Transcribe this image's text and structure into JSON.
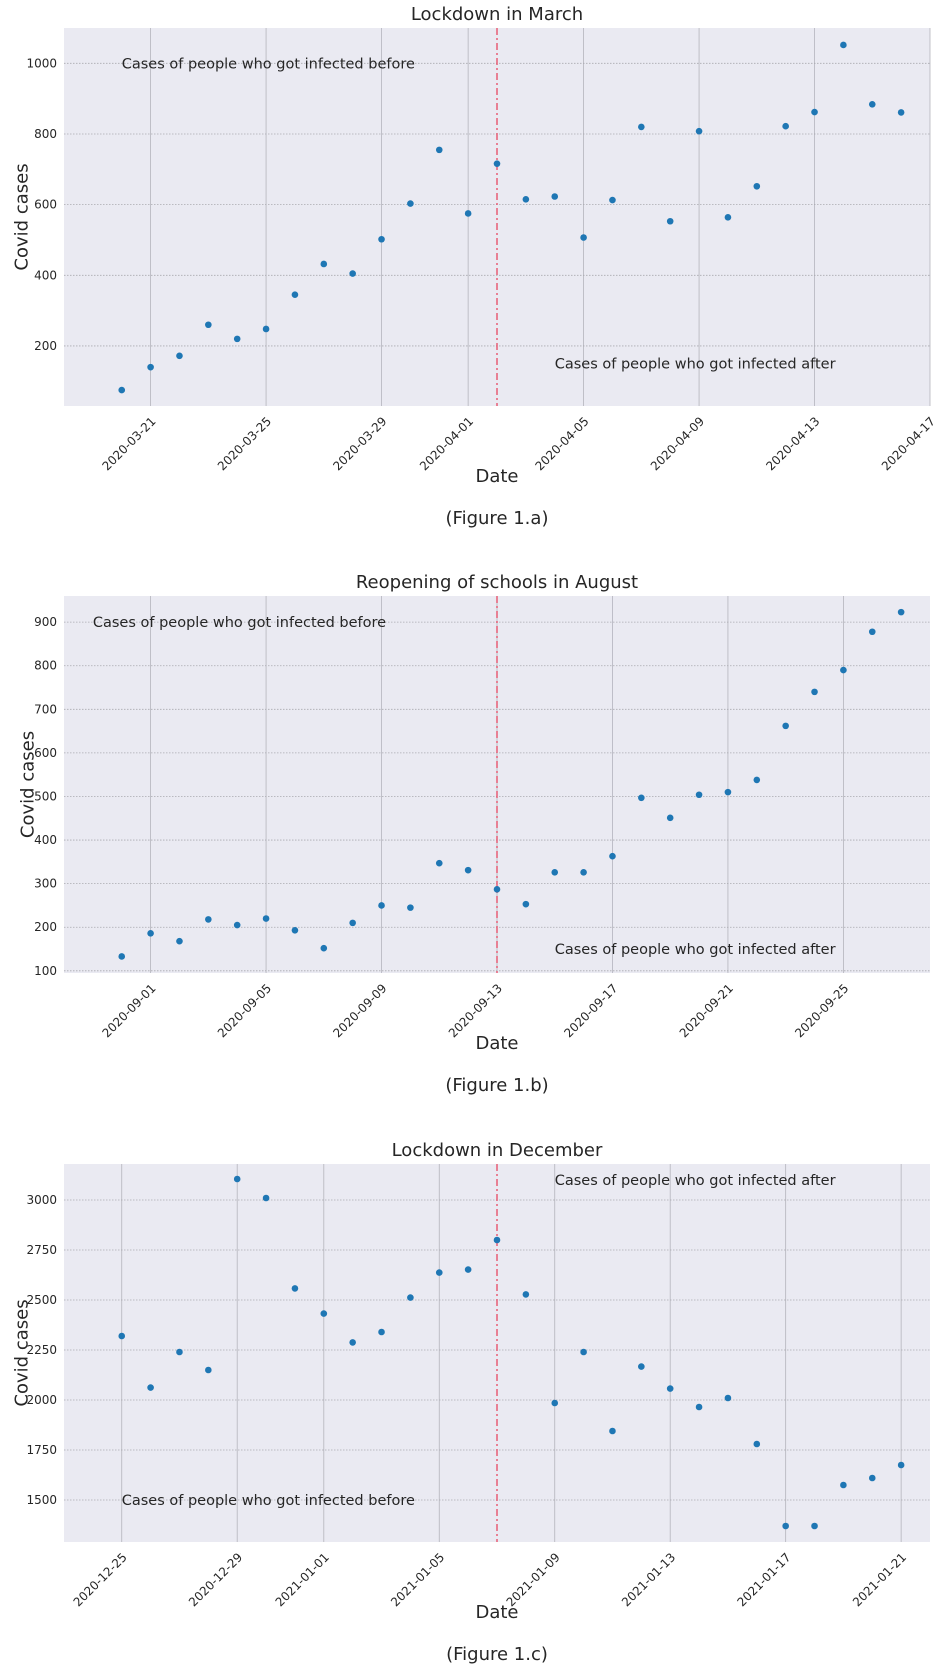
{
  "chart_data": [
    {
      "type": "scatter",
      "title": "Lockdown in March",
      "caption": "(Figure 1.a)",
      "xlabel": "Date",
      "ylabel": "Covid cases",
      "x_axis": "date",
      "xlim": [
        "2020-03-18",
        "2020-04-17"
      ],
      "ylim": [
        30,
        1100
      ],
      "x_ticks": [
        "2020-03-21",
        "2020-03-25",
        "2020-03-29",
        "2020-04-01",
        "2020-04-05",
        "2020-04-09",
        "2020-04-13",
        "2020-04-17"
      ],
      "y_ticks": [
        200,
        400,
        600,
        800,
        1000
      ],
      "grid": true,
      "marker_color": "#1f77b4",
      "event_line": {
        "x": "2020-04-02",
        "color": "#e8546c",
        "style": "dash-dot"
      },
      "annotations": [
        {
          "text": "Cases of people who got infected before",
          "x": "2020-03-20",
          "y": 1000
        },
        {
          "text": "Cases of people who got infected after",
          "x": "2020-04-04",
          "y": 150
        }
      ],
      "points": [
        {
          "x": "2020-03-20",
          "y": 75
        },
        {
          "x": "2020-03-21",
          "y": 140
        },
        {
          "x": "2020-03-22",
          "y": 172
        },
        {
          "x": "2020-03-23",
          "y": 260
        },
        {
          "x": "2020-03-24",
          "y": 220
        },
        {
          "x": "2020-03-25",
          "y": 248
        },
        {
          "x": "2020-03-26",
          "y": 345
        },
        {
          "x": "2020-03-27",
          "y": 432
        },
        {
          "x": "2020-03-28",
          "y": 405
        },
        {
          "x": "2020-03-29",
          "y": 502
        },
        {
          "x": "2020-03-30",
          "y": 603
        },
        {
          "x": "2020-03-31",
          "y": 755
        },
        {
          "x": "2020-04-01",
          "y": 575
        },
        {
          "x": "2020-04-02",
          "y": 716
        },
        {
          "x": "2020-04-03",
          "y": 615
        },
        {
          "x": "2020-04-04",
          "y": 623
        },
        {
          "x": "2020-04-05",
          "y": 507
        },
        {
          "x": "2020-04-06",
          "y": 613
        },
        {
          "x": "2020-04-07",
          "y": 820
        },
        {
          "x": "2020-04-08",
          "y": 553
        },
        {
          "x": "2020-04-09",
          "y": 808
        },
        {
          "x": "2020-04-10",
          "y": 564
        },
        {
          "x": "2020-04-11",
          "y": 652
        },
        {
          "x": "2020-04-12",
          "y": 822
        },
        {
          "x": "2020-04-13",
          "y": 862
        },
        {
          "x": "2020-04-14",
          "y": 1052
        },
        {
          "x": "2020-04-15",
          "y": 884
        },
        {
          "x": "2020-04-16",
          "y": 861
        }
      ]
    },
    {
      "type": "scatter",
      "title": "Reopening of schools in August",
      "caption": "(Figure 1.b)",
      "xlabel": "Date",
      "ylabel": "Covid cases",
      "x_axis": "date",
      "xlim": [
        "2020-08-29",
        "2020-09-28"
      ],
      "ylim": [
        95,
        960
      ],
      "x_ticks": [
        "2020-09-01",
        "2020-09-05",
        "2020-09-09",
        "2020-09-13",
        "2020-09-17",
        "2020-09-21",
        "2020-09-25"
      ],
      "y_ticks": [
        100,
        200,
        300,
        400,
        500,
        600,
        700,
        800,
        900
      ],
      "grid": true,
      "marker_color": "#1f77b4",
      "event_line": {
        "x": "2020-09-13",
        "color": "#e8546c",
        "style": "dash-dot"
      },
      "annotations": [
        {
          "text": "Cases of people who got infected before",
          "x": "2020-08-30",
          "y": 900
        },
        {
          "text": "Cases of people who got infected after",
          "x": "2020-09-15",
          "y": 150
        }
      ],
      "points": [
        {
          "x": "2020-08-31",
          "y": 133
        },
        {
          "x": "2020-09-01",
          "y": 186
        },
        {
          "x": "2020-09-02",
          "y": 168
        },
        {
          "x": "2020-09-03",
          "y": 218
        },
        {
          "x": "2020-09-04",
          "y": 205
        },
        {
          "x": "2020-09-05",
          "y": 220
        },
        {
          "x": "2020-09-06",
          "y": 193
        },
        {
          "x": "2020-09-07",
          "y": 152
        },
        {
          "x": "2020-09-08",
          "y": 210
        },
        {
          "x": "2020-09-09",
          "y": 250
        },
        {
          "x": "2020-09-10",
          "y": 245
        },
        {
          "x": "2020-09-11",
          "y": 347
        },
        {
          "x": "2020-09-12",
          "y": 331
        },
        {
          "x": "2020-09-13",
          "y": 287
        },
        {
          "x": "2020-09-14",
          "y": 253
        },
        {
          "x": "2020-09-15",
          "y": 326
        },
        {
          "x": "2020-09-16",
          "y": 326
        },
        {
          "x": "2020-09-17",
          "y": 363
        },
        {
          "x": "2020-09-18",
          "y": 497
        },
        {
          "x": "2020-09-19",
          "y": 451
        },
        {
          "x": "2020-09-20",
          "y": 504
        },
        {
          "x": "2020-09-21",
          "y": 510
        },
        {
          "x": "2020-09-22",
          "y": 538
        },
        {
          "x": "2020-09-23",
          "y": 662
        },
        {
          "x": "2020-09-24",
          "y": 740
        },
        {
          "x": "2020-09-25",
          "y": 790
        },
        {
          "x": "2020-09-26",
          "y": 878
        },
        {
          "x": "2020-09-27",
          "y": 923
        }
      ]
    },
    {
      "type": "scatter",
      "title": "Lockdown in December",
      "caption": "(Figure 1.c)",
      "xlabel": "Date",
      "ylabel": "Covid cases",
      "x_axis": "date",
      "xlim": [
        "2020-12-23",
        "2021-01-22"
      ],
      "ylim": [
        1290,
        3180
      ],
      "x_ticks": [
        "2020-12-25",
        "2020-12-29",
        "2021-01-01",
        "2021-01-05",
        "2021-01-09",
        "2021-01-13",
        "2021-01-17",
        "2021-01-21"
      ],
      "y_ticks": [
        1500,
        1750,
        2000,
        2250,
        2500,
        2750,
        3000
      ],
      "grid": true,
      "marker_color": "#1f77b4",
      "event_line": {
        "x": "2021-01-07",
        "color": "#e8546c",
        "style": "dash-dot"
      },
      "annotations": [
        {
          "text": "Cases of people who got infected after",
          "x": "2021-01-09",
          "y": 3100
        },
        {
          "text": "Cases of people who got infected before",
          "x": "2020-12-25",
          "y": 1500
        }
      ],
      "points": [
        {
          "x": "2020-12-25",
          "y": 2320
        },
        {
          "x": "2020-12-26",
          "y": 2062
        },
        {
          "x": "2020-12-27",
          "y": 2240
        },
        {
          "x": "2020-12-28",
          "y": 2150
        },
        {
          "x": "2020-12-29",
          "y": 3105
        },
        {
          "x": "2020-12-30",
          "y": 3010
        },
        {
          "x": "2020-12-31",
          "y": 2558
        },
        {
          "x": "2021-01-01",
          "y": 2432
        },
        {
          "x": "2021-01-02",
          "y": 2288
        },
        {
          "x": "2021-01-03",
          "y": 2340
        },
        {
          "x": "2021-01-04",
          "y": 2512
        },
        {
          "x": "2021-01-05",
          "y": 2637
        },
        {
          "x": "2021-01-06",
          "y": 2652
        },
        {
          "x": "2021-01-07",
          "y": 2800
        },
        {
          "x": "2021-01-08",
          "y": 2528
        },
        {
          "x": "2021-01-09",
          "y": 1985
        },
        {
          "x": "2021-01-10",
          "y": 2240
        },
        {
          "x": "2021-01-11",
          "y": 1845
        },
        {
          "x": "2021-01-12",
          "y": 2167
        },
        {
          "x": "2021-01-13",
          "y": 2057
        },
        {
          "x": "2021-01-14",
          "y": 1965
        },
        {
          "x": "2021-01-15",
          "y": 2010
        },
        {
          "x": "2021-01-16",
          "y": 1780
        },
        {
          "x": "2021-01-17",
          "y": 1370
        },
        {
          "x": "2021-01-18",
          "y": 1370
        },
        {
          "x": "2021-01-19",
          "y": 1575
        },
        {
          "x": "2021-01-20",
          "y": 1610
        },
        {
          "x": "2021-01-21",
          "y": 1675
        }
      ]
    }
  ]
}
